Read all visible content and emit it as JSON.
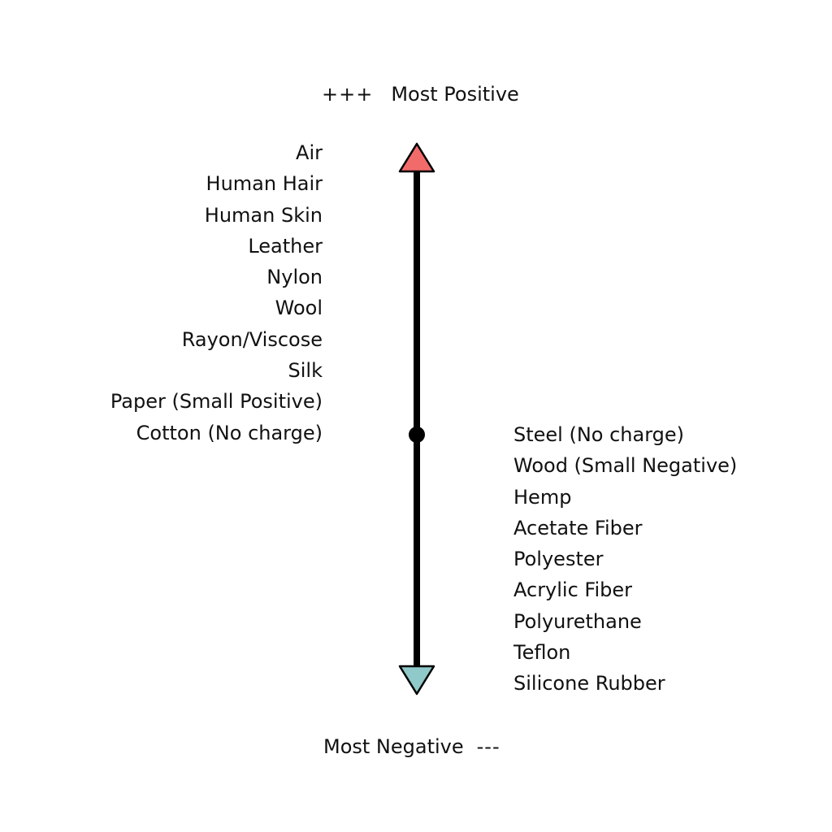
{
  "title_top": {
    "symbol": "+++",
    "text": "Most Positive"
  },
  "title_bottom": {
    "text": "Most Negative",
    "symbol": "---"
  },
  "colors": {
    "positive_arrow": "#f26b6b",
    "negative_arrow": "#8fc9c9",
    "line": "#000000"
  },
  "positive_items": [
    "Air",
    "Human Hair",
    "Human Skin",
    "Leather",
    "Nylon",
    "Wool",
    "Rayon/Viscose",
    "Silk",
    "Paper (Small Positive)",
    "Cotton (No charge)"
  ],
  "negative_items": [
    "Steel (No charge)",
    "Wood (Small Negative)",
    "Hemp",
    "Acetate Fiber",
    "Polyester",
    "Acrylic Fiber",
    "Polyurethane",
    "Teflon",
    "Silicone Rubber"
  ]
}
